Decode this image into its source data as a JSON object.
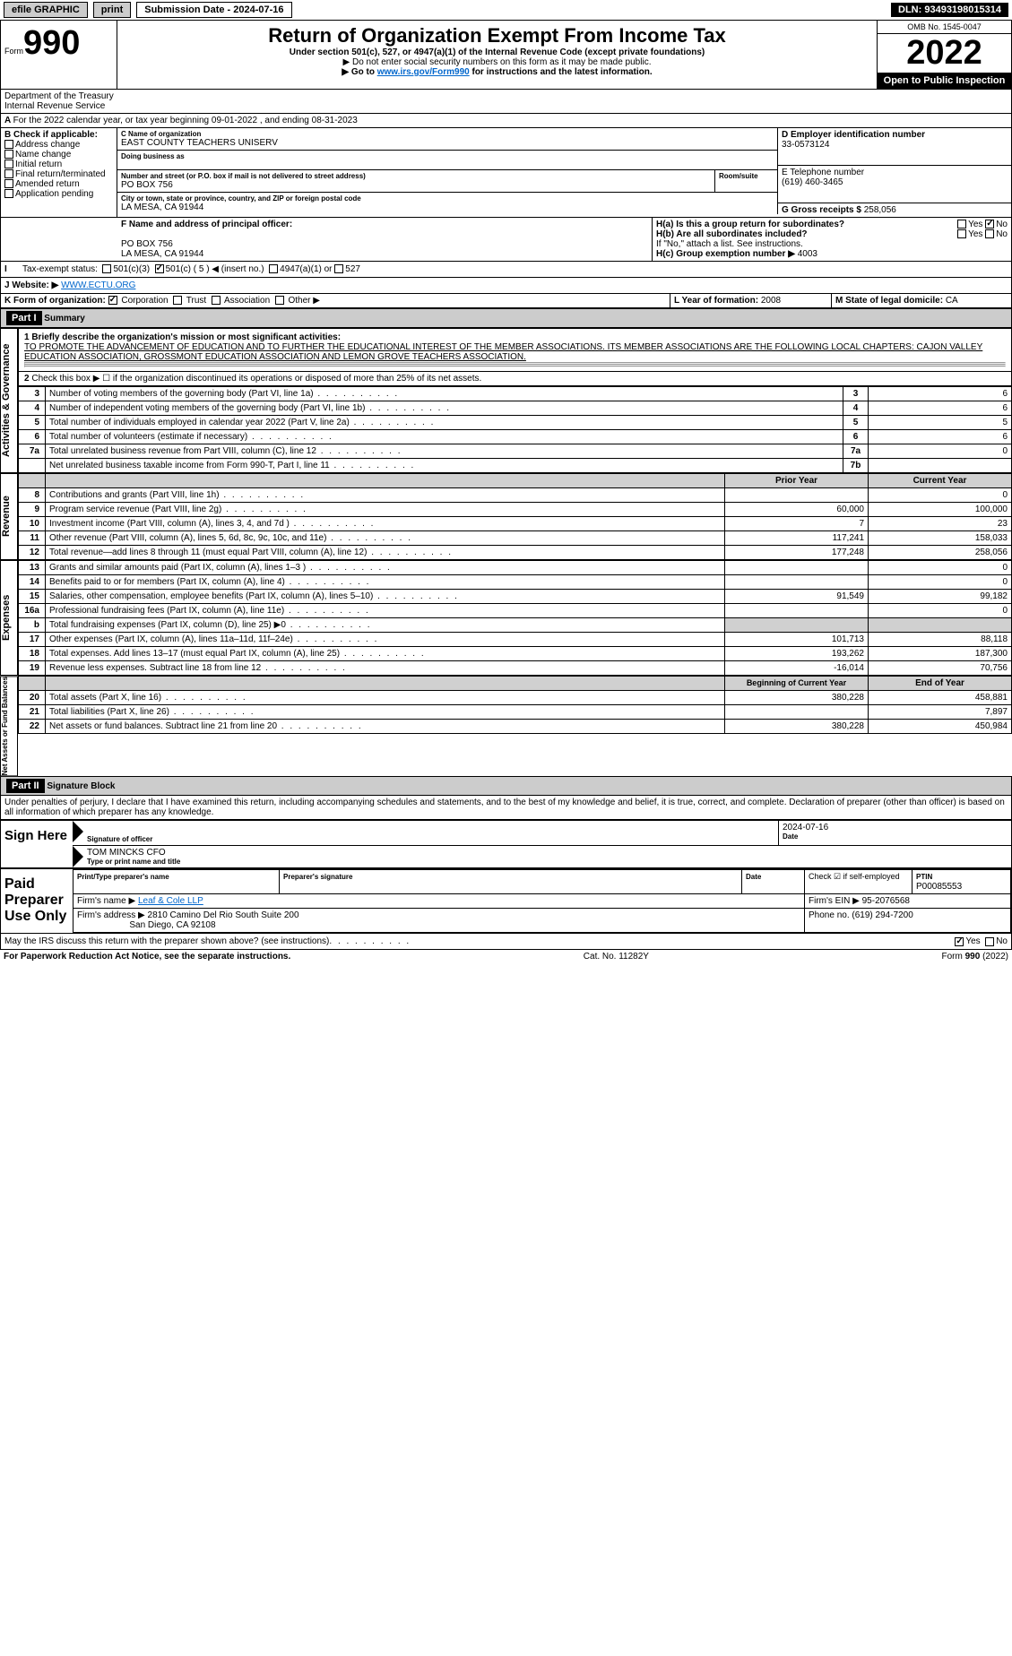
{
  "topbar": {
    "efile": "efile GRAPHIC",
    "print": "print",
    "sub_label": "Submission Date - 2024-07-16",
    "dln": "DLN: 93493198015314"
  },
  "header": {
    "form_word": "Form",
    "form_no": "990",
    "dept": "Department of the Treasury",
    "irs": "Internal Revenue Service",
    "title": "Return of Organization Exempt From Income Tax",
    "subtitle": "Under section 501(c), 527, or 4947(a)(1) of the Internal Revenue Code (except private foundations)",
    "note1": "▶ Do not enter social security numbers on this form as it may be made public.",
    "note2_pre": "▶ Go to ",
    "note2_link": "www.irs.gov/Form990",
    "note2_post": " for instructions and the latest information.",
    "omb": "OMB No. 1545-0047",
    "year": "2022",
    "open": "Open to Public Inspection"
  },
  "periodA": {
    "text": "For the 2022 calendar year, or tax year beginning 09-01-2022     , and ending 08-31-2023"
  },
  "boxB": {
    "label": "B Check if applicable:",
    "opts": [
      "Address change",
      "Name change",
      "Initial return",
      "Final return/terminated",
      "Amended return",
      "Application pending"
    ]
  },
  "boxC": {
    "name_lbl": "C Name of organization",
    "name": "EAST COUNTY TEACHERS UNISERV",
    "dba_lbl": "Doing business as",
    "street_lbl": "Number and street (or P.O. box if mail is not delivered to street address)",
    "room_lbl": "Room/suite",
    "street": "PO BOX 756",
    "city_lbl": "City or town, state or province, country, and ZIP or foreign postal code",
    "city": "LA MESA, CA  91944"
  },
  "boxD": {
    "lbl": "D Employer identification number",
    "val": "33-0573124"
  },
  "boxE": {
    "lbl": "E Telephone number",
    "val": "(619) 460-3465"
  },
  "boxG": {
    "lbl": "G Gross receipts $",
    "val": "258,056"
  },
  "boxF": {
    "lbl": "F Name and address of principal officer:",
    "addr1": "PO BOX 756",
    "addr2": "LA MESA, CA  91944"
  },
  "boxH": {
    "a": "H(a)  Is this a group return for subordinates?",
    "b": "H(b)  Are all subordinates included?",
    "bnote": "If \"No,\" attach a list. See instructions.",
    "c": "H(c)  Group exemption number ▶",
    "cval": "4003",
    "yes": "Yes",
    "no": "No"
  },
  "boxI": {
    "lbl": "Tax-exempt status:",
    "opts": [
      "501(c)(3)",
      "501(c) ( 5 ) ◀ (insert no.)",
      "4947(a)(1) or",
      "527"
    ]
  },
  "boxJ": {
    "lbl": "Website: ▶",
    "val": "WWW.ECTU.ORG"
  },
  "boxK": {
    "lbl": "K Form of organization:",
    "opts": [
      "Corporation",
      "Trust",
      "Association",
      "Other ▶"
    ]
  },
  "boxL": {
    "lbl": "L Year of formation:",
    "val": "2008"
  },
  "boxM": {
    "lbl": "M State of legal domicile:",
    "val": "CA"
  },
  "part1": {
    "marker": "Part I",
    "title": "Summary",
    "side_ag": "Activities & Governance",
    "side_rev": "Revenue",
    "side_exp": "Expenses",
    "side_na": "Net Assets or Fund Balances",
    "line1_lbl": "1 Briefly describe the organization's mission or most significant activities:",
    "line1_txt": "TO PROMOTE THE ADVANCEMENT OF EDUCATION AND TO FURTHER THE EDUCATIONAL INTEREST OF THE MEMBER ASSOCIATIONS. ITS MEMBER ASSOCIATIONS ARE THE FOLLOWING LOCAL CHAPTERS: CAJON VALLEY EDUCATION ASSOCIATION, GROSSMONT EDUCATION ASSOCIATION AND LEMON GROVE TEACHERS ASSOCIATION.",
    "line2": "Check this box ▶ ☐ if the organization discontinued its operations or disposed of more than 25% of its net assets.",
    "rows_ag": [
      {
        "n": "3",
        "t": "Number of voting members of the governing body (Part VI, line 1a)",
        "bn": "3",
        "v": "6"
      },
      {
        "n": "4",
        "t": "Number of independent voting members of the governing body (Part VI, line 1b)",
        "bn": "4",
        "v": "6"
      },
      {
        "n": "5",
        "t": "Total number of individuals employed in calendar year 2022 (Part V, line 2a)",
        "bn": "5",
        "v": "5"
      },
      {
        "n": "6",
        "t": "Total number of volunteers (estimate if necessary)",
        "bn": "6",
        "v": "6"
      },
      {
        "n": "7a",
        "t": "Total unrelated business revenue from Part VIII, column (C), line 12",
        "bn": "7a",
        "v": "0"
      },
      {
        "n": "",
        "t": "Net unrelated business taxable income from Form 990-T, Part I, line 11",
        "bn": "7b",
        "v": ""
      }
    ],
    "col_py": "Prior Year",
    "col_cy": "Current Year",
    "rows_rev": [
      {
        "n": "8",
        "t": "Contributions and grants (Part VIII, line 1h)",
        "py": "",
        "cy": "0"
      },
      {
        "n": "9",
        "t": "Program service revenue (Part VIII, line 2g)",
        "py": "60,000",
        "cy": "100,000"
      },
      {
        "n": "10",
        "t": "Investment income (Part VIII, column (A), lines 3, 4, and 7d )",
        "py": "7",
        "cy": "23"
      },
      {
        "n": "11",
        "t": "Other revenue (Part VIII, column (A), lines 5, 6d, 8c, 9c, 10c, and 11e)",
        "py": "117,241",
        "cy": "158,033"
      },
      {
        "n": "12",
        "t": "Total revenue—add lines 8 through 11 (must equal Part VIII, column (A), line 12)",
        "py": "177,248",
        "cy": "258,056"
      }
    ],
    "rows_exp": [
      {
        "n": "13",
        "t": "Grants and similar amounts paid (Part IX, column (A), lines 1–3 )",
        "py": "",
        "cy": "0"
      },
      {
        "n": "14",
        "t": "Benefits paid to or for members (Part IX, column (A), line 4)",
        "py": "",
        "cy": "0"
      },
      {
        "n": "15",
        "t": "Salaries, other compensation, employee benefits (Part IX, column (A), lines 5–10)",
        "py": "91,549",
        "cy": "99,182"
      },
      {
        "n": "16a",
        "t": "Professional fundraising fees (Part IX, column (A), line 11e)",
        "py": "",
        "cy": "0"
      },
      {
        "n": "b",
        "t": "Total fundraising expenses (Part IX, column (D), line 25) ▶0",
        "py": "SHADE",
        "cy": "SHADE"
      },
      {
        "n": "17",
        "t": "Other expenses (Part IX, column (A), lines 11a–11d, 11f–24e)",
        "py": "101,713",
        "cy": "88,118"
      },
      {
        "n": "18",
        "t": "Total expenses. Add lines 13–17 (must equal Part IX, column (A), line 25)",
        "py": "193,262",
        "cy": "187,300"
      },
      {
        "n": "19",
        "t": "Revenue less expenses. Subtract line 18 from line 12",
        "py": "-16,014",
        "cy": "70,756"
      }
    ],
    "col_bcy": "Beginning of Current Year",
    "col_eoy": "End of Year",
    "rows_na": [
      {
        "n": "20",
        "t": "Total assets (Part X, line 16)",
        "py": "380,228",
        "cy": "458,881"
      },
      {
        "n": "21",
        "t": "Total liabilities (Part X, line 26)",
        "py": "",
        "cy": "7,897"
      },
      {
        "n": "22",
        "t": "Net assets or fund balances. Subtract line 21 from line 20",
        "py": "380,228",
        "cy": "450,984"
      }
    ]
  },
  "part2": {
    "marker": "Part II",
    "title": "Signature Block",
    "decl": "Under penalties of perjury, I declare that I have examined this return, including accompanying schedules and statements, and to the best of my knowledge and belief, it is true, correct, and complete. Declaration of preparer (other than officer) is based on all information of which preparer has any knowledge.",
    "sign_here": "Sign Here",
    "sig_officer": "Signature of officer",
    "date": "Date",
    "date_val": "2024-07-16",
    "name_title": "Type or print name and title",
    "officer_name": "TOM MINCKS CFO",
    "paid": "Paid Preparer Use Only",
    "pt_name_lbl": "Print/Type preparer's name",
    "prep_sig": "Preparer's signature",
    "check_self": "Check ☑ if self-employed",
    "ptin_lbl": "PTIN",
    "ptin": "P00085553",
    "firm_name_lbl": "Firm's name    ▶",
    "firm_name": "Leaf & Cole LLP",
    "firm_ein_lbl": "Firm's EIN ▶",
    "firm_ein": "95-2076568",
    "firm_addr_lbl": "Firm's address ▶",
    "firm_addr1": "2810 Camino Del Rio South Suite 200",
    "firm_addr2": "San Diego, CA  92108",
    "phone_lbl": "Phone no.",
    "phone": "(619) 294-7200",
    "discuss": "May the IRS discuss this return with the preparer shown above? (see instructions)",
    "yes": "Yes",
    "no": "No"
  },
  "footer": {
    "pra": "For Paperwork Reduction Act Notice, see the separate instructions.",
    "cat": "Cat. No. 11282Y",
    "form": "Form 990 (2022)"
  }
}
